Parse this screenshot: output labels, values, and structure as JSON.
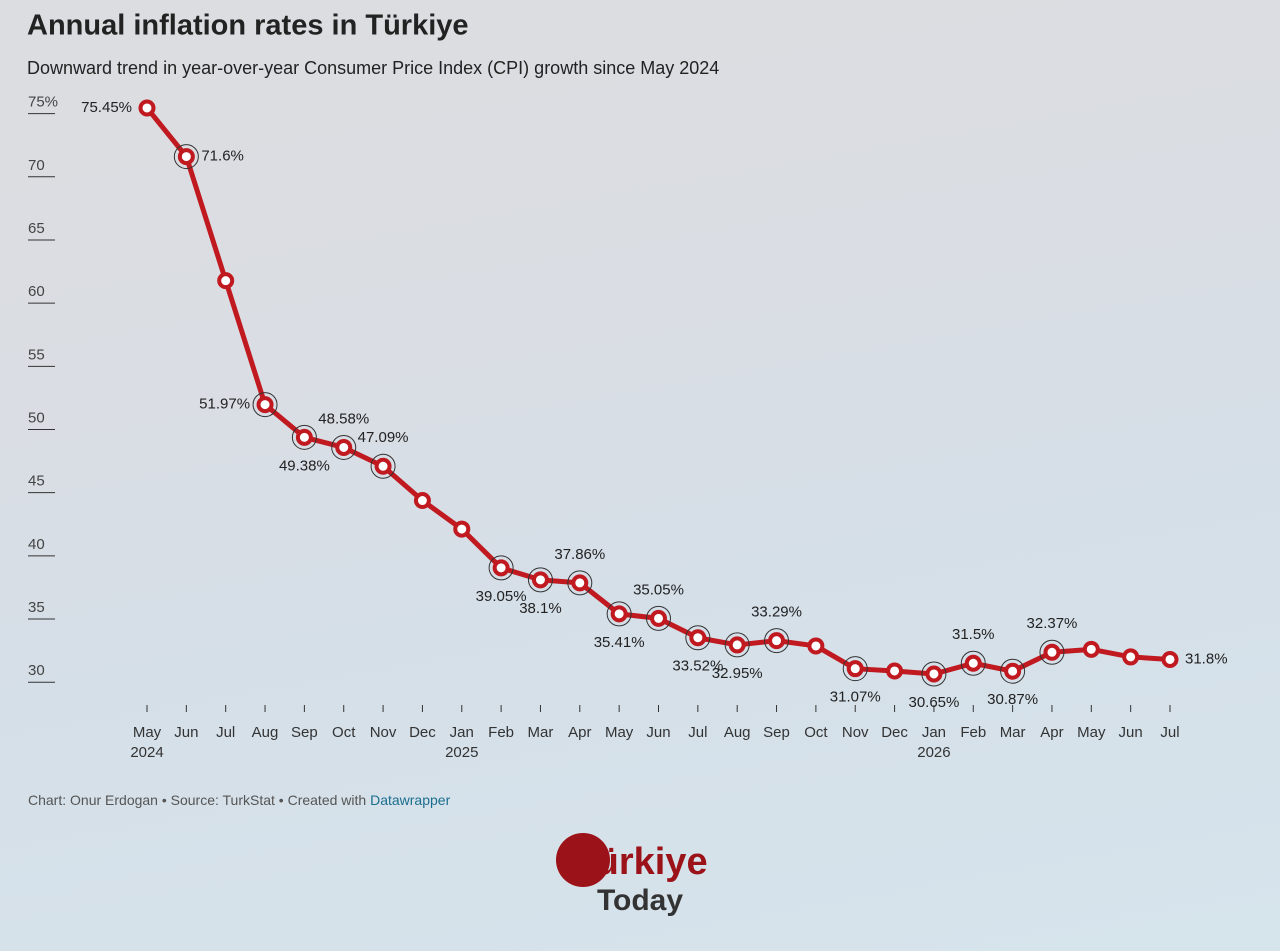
{
  "chart_data": {
    "type": "line",
    "title": "Annual inflation rates in Türkiye",
    "subtitle": "Downward trend in year-over-year Consumer Price Index (CPI) growth since May 2024",
    "categories": [
      "May 2024",
      "Jun",
      "Jul",
      "Aug",
      "Sep",
      "Oct",
      "Nov",
      "Dec",
      "Jan 2025",
      "Feb",
      "Mar",
      "Apr",
      "May",
      "Jun",
      "Jul",
      "Aug",
      "Sep",
      "Oct",
      "Nov",
      "Dec",
      "Jan 2026",
      "Feb",
      "Mar",
      "Apr",
      "May",
      "Jun",
      "Jul"
    ],
    "series": [
      {
        "name": "Annual inflation",
        "color": "#c0191f",
        "values": [
          75.45,
          71.6,
          61.78,
          51.97,
          49.38,
          48.58,
          47.09,
          44.38,
          42.12,
          39.05,
          38.1,
          37.86,
          35.41,
          35.05,
          33.52,
          32.95,
          33.29,
          32.87,
          31.07,
          30.89,
          30.65,
          31.5,
          30.87,
          32.37,
          32.6,
          32.0,
          31.8
        ],
        "value_labels": [
          "75.45%",
          "71.6%",
          null,
          "51.97%",
          "49.38%",
          "48.58%",
          "47.09%",
          null,
          null,
          "39.05%",
          "38.1%",
          "37.86%",
          "35.41%",
          "35.05%",
          "33.52%",
          "32.95%",
          "33.29%",
          null,
          "31.07%",
          null,
          "30.65%",
          "31.5%",
          "30.87%",
          "32.37%",
          null,
          null,
          "31.8%"
        ]
      }
    ],
    "ylim": [
      27.8,
      76
    ],
    "yticks": [
      30,
      35,
      40,
      45,
      50,
      55,
      60,
      65,
      70,
      {
        "value": 75,
        "label": "75%"
      }
    ],
    "source": "Chart: Onur Erdogan • Source: TurkStat • Created with",
    "source_link": "Datawrapper",
    "logo_top": "Türkiye",
    "logo_bottom": "Today"
  }
}
